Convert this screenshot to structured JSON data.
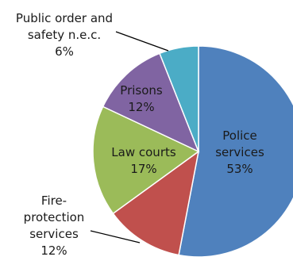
{
  "chart_data": {
    "type": "pie",
    "title": "",
    "start_angle_deg": 0,
    "direction": "clockwise",
    "slices": [
      {
        "label_lines": [
          "Police",
          "services"
        ],
        "value": 53,
        "value_text": "53%",
        "color": "#4F81BD",
        "label_placement": "inside"
      },
      {
        "label_lines": [
          "Fire-",
          "protection",
          "services"
        ],
        "value": 12,
        "value_text": "12%",
        "color": "#C0504D",
        "label_placement": "outside"
      },
      {
        "label_lines": [
          "Law courts"
        ],
        "value": 17,
        "value_text": "17%",
        "color": "#9BBB59",
        "label_placement": "inside"
      },
      {
        "label_lines": [
          "Prisons"
        ],
        "value": 12,
        "value_text": "12%",
        "color": "#8064A2",
        "label_placement": "inside"
      },
      {
        "label_lines": [
          "Public order and",
          "safety n.e.c."
        ],
        "value": 6,
        "value_text": "6%",
        "color": "#4BACC6",
        "label_placement": "outside"
      }
    ],
    "legend": "none"
  }
}
